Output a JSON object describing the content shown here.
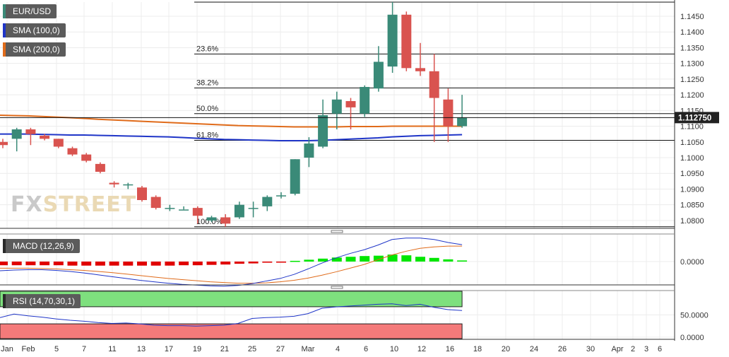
{
  "legend": {
    "symbol": "EUR/USD",
    "sma100": "SMA (100,0)",
    "sma200": "SMA (200,0)",
    "macd": "MACD (12,26,9)",
    "rsi": "RSI (14,70,30,1)"
  },
  "watermark": {
    "part1": "FX",
    "part2": "STREET"
  },
  "colors": {
    "up": "#3a8a78",
    "down": "#d9534f",
    "sma100": "#1f35c8",
    "sma200": "#e06b1a",
    "macd_pos": "#00e600",
    "macd_neg": "#e00000",
    "rsi_over": "#7ee07e",
    "rsi_under": "#f47a7a"
  },
  "chart_data": [
    {
      "type": "candlestick",
      "title": "EUR/USD",
      "y_ticks": [
        "1.1450",
        "1.1400",
        "1.1350",
        "1.1300",
        "1.1250",
        "1.1200",
        "1.1150",
        "1.1100",
        "1.1050",
        "1.1000",
        "1.0950",
        "1.0900",
        "1.0850",
        "1.0800"
      ],
      "ylim": [
        1.0775,
        1.1495
      ],
      "last_price": "1.112750",
      "x_ticks": [
        "Jan",
        "Feb",
        "5",
        "7",
        "11",
        "13",
        "17",
        "19",
        "21",
        "25",
        "27",
        "Mar",
        "4",
        "6",
        "10",
        "12",
        "16",
        "18",
        "20",
        "24",
        "26",
        "30",
        "Apr",
        "2",
        "3",
        "6"
      ],
      "candles": [
        {
          "o": 1.105,
          "h": 1.106,
          "l": 1.103,
          "c": 1.104
        },
        {
          "o": 1.106,
          "h": 1.1095,
          "l": 1.102,
          "c": 1.109
        },
        {
          "o": 1.109,
          "h": 1.1095,
          "l": 1.104,
          "c": 1.1075
        },
        {
          "o": 1.107,
          "h": 1.1075,
          "l": 1.1055,
          "c": 1.106
        },
        {
          "o": 1.106,
          "h": 1.106,
          "l": 1.103,
          "c": 1.1035
        },
        {
          "o": 1.103,
          "h": 1.1035,
          "l": 1.1005,
          "c": 1.101
        },
        {
          "o": 1.101,
          "h": 1.1015,
          "l": 1.0985,
          "c": 1.099
        },
        {
          "o": 1.098,
          "h": 1.0985,
          "l": 1.095,
          "c": 1.0955
        },
        {
          "o": 1.092,
          "h": 1.0925,
          "l": 1.0905,
          "c": 1.0915
        },
        {
          "o": 1.0915,
          "h": 1.092,
          "l": 1.09,
          "c": 1.0915
        },
        {
          "o": 1.0905,
          "h": 1.091,
          "l": 1.086,
          "c": 1.0865
        },
        {
          "o": 1.0875,
          "h": 1.088,
          "l": 1.0835,
          "c": 1.084
        },
        {
          "o": 1.084,
          "h": 1.085,
          "l": 1.083,
          "c": 1.084
        },
        {
          "o": 1.0835,
          "h": 1.0845,
          "l": 1.0835,
          "c": 1.0835
        },
        {
          "o": 1.084,
          "h": 1.0845,
          "l": 1.079,
          "c": 1.0815
        },
        {
          "o": 1.08,
          "h": 1.0815,
          "l": 1.0795,
          "c": 1.081
        },
        {
          "o": 1.081,
          "h": 1.082,
          "l": 1.078,
          "c": 1.079
        },
        {
          "o": 1.081,
          "h": 1.086,
          "l": 1.0805,
          "c": 1.085
        },
        {
          "o": 1.084,
          "h": 1.086,
          "l": 1.081,
          "c": 1.084
        },
        {
          "o": 1.0845,
          "h": 1.088,
          "l": 1.083,
          "c": 1.0875
        },
        {
          "o": 1.088,
          "h": 1.089,
          "l": 1.087,
          "c": 1.088
        },
        {
          "o": 1.0885,
          "h": 1.0995,
          "l": 1.088,
          "c": 1.0995
        },
        {
          "o": 1.1,
          "h": 1.1065,
          "l": 1.097,
          "c": 1.1045
        },
        {
          "o": 1.1035,
          "h": 1.1185,
          "l": 1.103,
          "c": 1.1135
        },
        {
          "o": 1.114,
          "h": 1.121,
          "l": 1.109,
          "c": 1.1185
        },
        {
          "o": 1.118,
          "h": 1.119,
          "l": 1.109,
          "c": 1.116
        },
        {
          "o": 1.114,
          "h": 1.123,
          "l": 1.113,
          "c": 1.1225
        },
        {
          "o": 1.122,
          "h": 1.1355,
          "l": 1.121,
          "c": 1.1305
        },
        {
          "o": 1.129,
          "h": 1.1495,
          "l": 1.127,
          "c": 1.1455
        },
        {
          "o": 1.1455,
          "h": 1.1465,
          "l": 1.1275,
          "c": 1.1285
        },
        {
          "o": 1.1285,
          "h": 1.1365,
          "l": 1.126,
          "c": 1.1275
        },
        {
          "o": 1.1275,
          "h": 1.133,
          "l": 1.105,
          "c": 1.119
        },
        {
          "o": 1.1185,
          "h": 1.122,
          "l": 1.105,
          "c": 1.11
        },
        {
          "o": 1.11,
          "h": 1.12,
          "l": 1.1095,
          "c": 1.1128
        }
      ],
      "sma100": [
        1.1075,
        1.1075,
        1.1075,
        1.1074,
        1.1073,
        1.1072,
        1.1072,
        1.1071,
        1.107,
        1.1069,
        1.1068,
        1.1067,
        1.1066,
        1.1064,
        1.1062,
        1.106,
        1.1058,
        1.1057,
        1.1056,
        1.1055,
        1.1054,
        1.1054,
        1.1054,
        1.1055,
        1.1057,
        1.1059,
        1.1061,
        1.1063,
        1.1066,
        1.1068,
        1.107,
        1.1071,
        1.1072,
        1.1073
      ],
      "sma200": [
        1.1135,
        1.1134,
        1.1133,
        1.1131,
        1.1129,
        1.1127,
        1.1125,
        1.1122,
        1.112,
        1.1118,
        1.1116,
        1.1114,
        1.1112,
        1.111,
        1.1108,
        1.1106,
        1.1104,
        1.1102,
        1.1101,
        1.11,
        1.1099,
        1.1098,
        1.1098,
        1.1098,
        1.1098,
        1.1099,
        1.1099,
        1.1099,
        1.11,
        1.11,
        1.11,
        1.11,
        1.11,
        1.11
      ],
      "fibonacci": [
        {
          "label": "23.6%",
          "value": 1.133
        },
        {
          "label": "38.2%",
          "value": 1.1222
        },
        {
          "label": "50.0%",
          "value": 1.114
        },
        {
          "label": "61.8%",
          "value": 1.1055
        },
        {
          "label": "100.0%",
          "value": 1.078
        }
      ]
    },
    {
      "type": "macd",
      "title": "MACD (12,26,9)",
      "y_ticks": [
        "0.0000"
      ],
      "histogram": [
        -0.001,
        -0.001,
        -0.001,
        -0.001,
        -0.001,
        -0.0011,
        -0.0011,
        -0.0011,
        -0.0011,
        -0.0011,
        -0.0011,
        -0.0011,
        -0.0011,
        -0.001,
        -0.001,
        -0.0009,
        -0.0008,
        -0.0006,
        -0.0005,
        -0.0003,
        -0.0001,
        0.0002,
        0.0005,
        0.0008,
        0.0011,
        0.0013,
        0.0015,
        0.0016,
        0.0019,
        0.0017,
        0.0013,
        0.001,
        0.0006,
        0.0003
      ],
      "macd": [
        -0.0025,
        -0.0023,
        -0.0022,
        -0.0022,
        -0.0024,
        -0.0027,
        -0.0031,
        -0.0036,
        -0.0041,
        -0.0046,
        -0.0051,
        -0.0055,
        -0.0059,
        -0.0062,
        -0.0064,
        -0.0066,
        -0.0067,
        -0.0065,
        -0.006,
        -0.0053,
        -0.0046,
        -0.0035,
        -0.002,
        -0.0004,
        0.001,
        0.0022,
        0.0032,
        0.0045,
        0.006,
        0.0064,
        0.0064,
        0.006,
        0.0052,
        0.0046
      ],
      "signal": [
        -0.0018,
        -0.0018,
        -0.0018,
        -0.0019,
        -0.002,
        -0.0022,
        -0.0024,
        -0.0027,
        -0.003,
        -0.0034,
        -0.0038,
        -0.0042,
        -0.0046,
        -0.0049,
        -0.0052,
        -0.0055,
        -0.0057,
        -0.0059,
        -0.0059,
        -0.0058,
        -0.0055,
        -0.0051,
        -0.0045,
        -0.0037,
        -0.0028,
        -0.0018,
        -0.0008,
        0.0005,
        0.0018,
        0.0028,
        0.0036,
        0.004,
        0.0042,
        0.0042
      ]
    },
    {
      "type": "rsi",
      "title": "RSI (14,70,30,1)",
      "y_ticks": [
        "50.0000",
        "0.0000"
      ],
      "ylim": [
        0,
        100
      ],
      "bands": {
        "over": 70,
        "under": 30
      },
      "values": [
        44,
        52,
        48,
        45,
        41,
        38,
        36,
        33,
        31,
        32,
        30,
        27,
        26,
        26,
        25,
        26,
        27,
        31,
        42,
        44,
        45,
        47,
        53,
        65,
        68,
        70,
        72,
        74,
        75,
        71,
        74,
        67,
        62,
        60
      ]
    }
  ]
}
